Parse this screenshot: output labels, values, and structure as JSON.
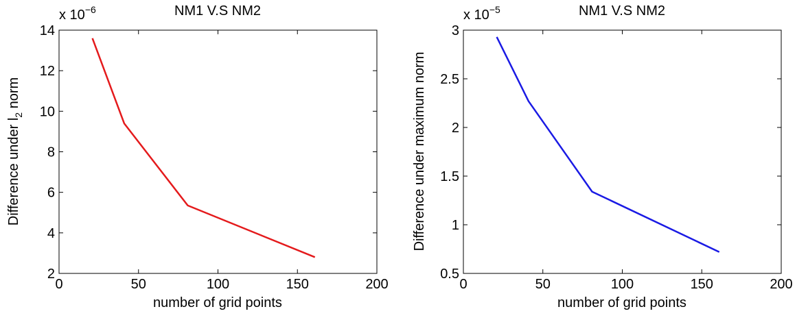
{
  "chart_data": [
    {
      "type": "line",
      "title": "NM1 V.S NM2",
      "xlabel": "number of grid points",
      "ylabel_prefix": "Difference under l",
      "ylabel_sub": "2",
      "ylabel_suffix": " norm",
      "exponent_base": "x 10",
      "exponent_power": "−6",
      "xlim": [
        0,
        200
      ],
      "ylim": [
        2,
        14
      ],
      "xticks": [
        0,
        50,
        100,
        150,
        200
      ],
      "yticks": [
        2,
        4,
        6,
        8,
        10,
        12,
        14
      ],
      "xtick_labels": [
        "0",
        "50",
        "100",
        "150",
        "200"
      ],
      "ytick_labels": [
        "2",
        "4",
        "6",
        "8",
        "10",
        "12",
        "14"
      ],
      "grid": false,
      "series": [
        {
          "color": "#e41a1c",
          "x": [
            21,
            41,
            81,
            161
          ],
          "y": [
            13.6,
            9.4,
            5.35,
            2.8
          ]
        }
      ]
    },
    {
      "type": "line",
      "title": "NM1 V.S NM2",
      "xlabel": "number of grid points",
      "ylabel": "Difference under maximum norm",
      "exponent_base": "x 10",
      "exponent_power": "−5",
      "xlim": [
        0,
        200
      ],
      "ylim": [
        0.5,
        3
      ],
      "xticks": [
        0,
        50,
        100,
        150,
        200
      ],
      "yticks": [
        0.5,
        1,
        1.5,
        2,
        2.5,
        3
      ],
      "xtick_labels": [
        "0",
        "50",
        "100",
        "150",
        "200"
      ],
      "ytick_labels": [
        "0.5",
        "1",
        "1.5",
        "2",
        "2.5",
        "3"
      ],
      "grid": false,
      "series": [
        {
          "color": "#1a1ae4",
          "x": [
            21,
            41,
            81,
            161
          ],
          "y": [
            2.93,
            2.27,
            1.34,
            0.72
          ]
        }
      ]
    }
  ]
}
